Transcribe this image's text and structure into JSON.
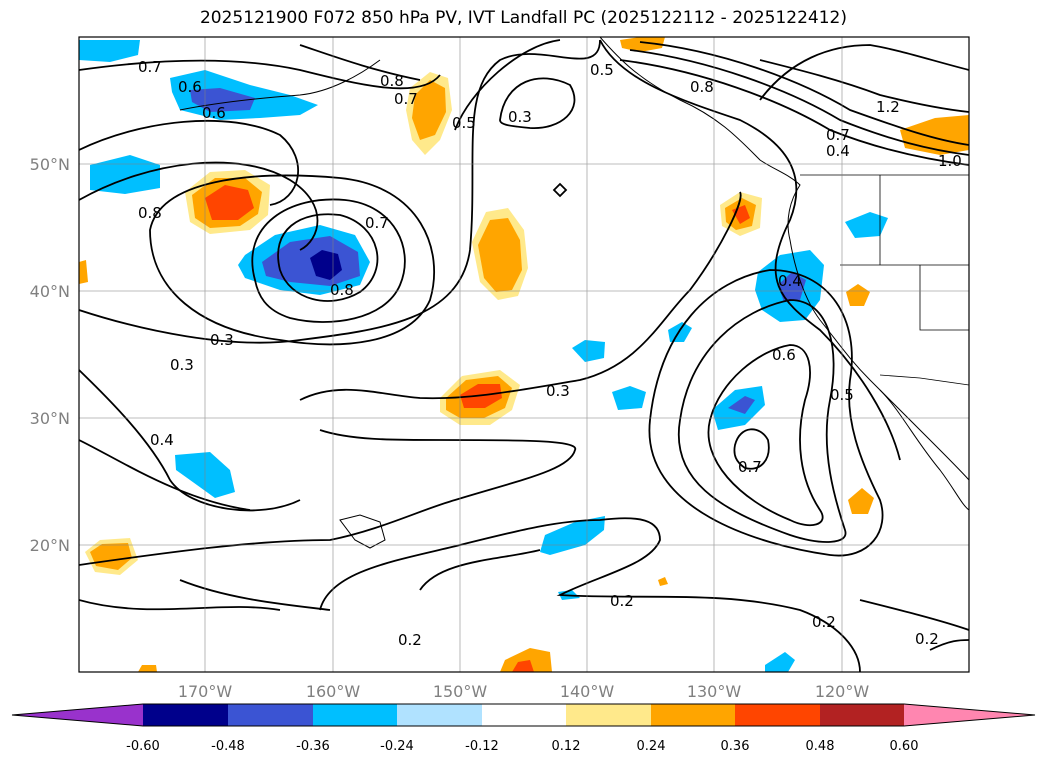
{
  "title": "2025121900 F072 850 hPa PV, IVT Landfall PC (2025122112 - 2025122412)",
  "axes": {
    "lon_labels": [
      "170°W",
      "160°W",
      "150°W",
      "140°W",
      "130°W",
      "120°W"
    ],
    "lat_labels": [
      "50°N",
      "40°N",
      "30°N",
      "20°N"
    ],
    "lon_range": [
      -180,
      -110
    ],
    "lat_range": [
      10,
      60
    ],
    "grid": true
  },
  "colorbar": {
    "ticks": [
      "-0.60",
      "-0.48",
      "-0.36",
      "-0.24",
      "-0.12",
      "0.12",
      "0.24",
      "0.36",
      "0.48",
      "0.60"
    ],
    "colors": [
      "#9932cc",
      "#00008b",
      "#3b54d3",
      "#00bfff",
      "#b0e2ff",
      "#ffffff",
      "#ffe98b",
      "#ffa500",
      "#ff4500",
      "#b22222",
      "#ff86b0"
    ],
    "extend": "both"
  },
  "contour_labels": [
    "0.7",
    "0.6",
    "0.6",
    "0.8",
    "0.8",
    "0.7",
    "0.5",
    "0.5",
    "0.3",
    "0.8",
    "0.7",
    "0.8",
    "0.3",
    "0.3",
    "0.4",
    "0.3",
    "0.4",
    "0.6",
    "0.5",
    "0.7",
    "0.2",
    "0.2",
    "0.2",
    "0.2",
    "0.7",
    "0.4",
    "1.2",
    "1.0"
  ]
}
